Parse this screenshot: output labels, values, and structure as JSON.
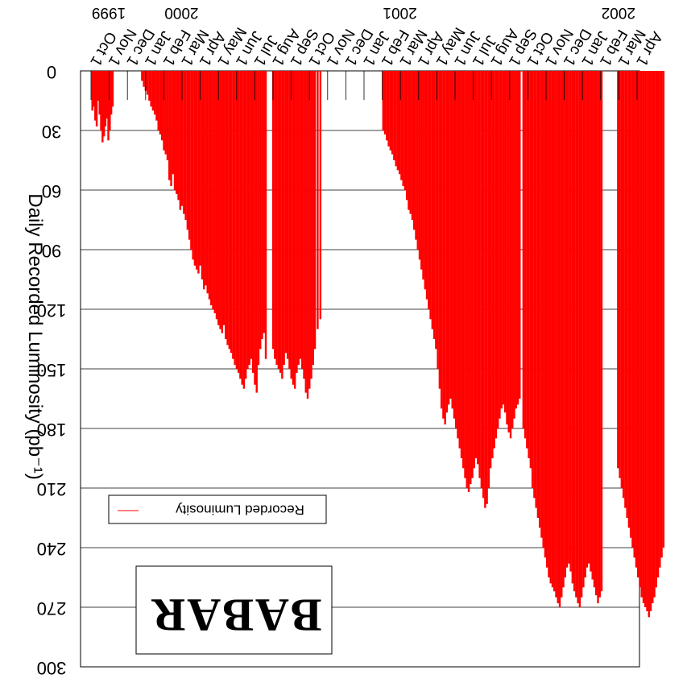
{
  "chart_data": {
    "type": "bar",
    "title": "",
    "xlabel": "",
    "ylabel": "Daily Recorded Luminosity (pb⁻¹)",
    "ylim": [
      0,
      300
    ],
    "yticks": [
      "0",
      "30",
      "60",
      "90",
      "120",
      "150",
      "180",
      "210",
      "240",
      "270",
      "300"
    ],
    "grid": true,
    "orientation": "upside-down",
    "legend": {
      "position": "lower-left",
      "entries": [
        "Recorded Luminosity"
      ]
    },
    "logo": "BABAR",
    "year_labels": [
      {
        "label": "1999",
        "month_index": 0
      },
      {
        "label": "2000",
        "month_index": 4
      },
      {
        "label": "2001",
        "month_index": 16
      },
      {
        "label": "2002",
        "month_index": 28
      }
    ],
    "months": [
      "Oct 1",
      "Nov 1",
      "Dec 1",
      "Jan 1",
      "Feb 1",
      "Mar 1",
      "Apr 1",
      "May 1",
      "Jun 1",
      "Jul 1",
      "Aug 1",
      "Sep 1",
      "Oct 1",
      "Nov 1",
      "Dec 1",
      "Jan 1",
      "Feb 1",
      "Mar 1",
      "Apr 1",
      "May 1",
      "Jun 1",
      "Jul 1",
      "Aug 1",
      "Sep 1",
      "Oct 1",
      "Nov 1",
      "Dec 1",
      "Jan 1",
      "Feb 1",
      "Mar 1",
      "Apr 1"
    ],
    "series": [
      {
        "name": "Recorded Luminosity",
        "color": "#ff0000",
        "x_unit": "month since Oct 1 1999",
        "x": [
          0.02,
          0.1,
          0.18,
          0.26,
          0.34,
          0.42,
          0.5,
          0.58,
          0.66,
          0.74,
          0.82,
          0.9,
          0.98,
          1.06,
          1.14,
          2.75,
          2.85,
          2.95,
          3.05,
          3.15,
          3.25,
          3.35,
          3.45,
          3.55,
          3.65,
          3.75,
          3.85,
          3.95,
          4.05,
          4.15,
          4.25,
          4.35,
          4.45,
          4.55,
          4.65,
          4.75,
          4.85,
          4.95,
          5.05,
          5.15,
          5.25,
          5.35,
          5.45,
          5.55,
          5.65,
          5.75,
          5.85,
          5.95,
          6.05,
          6.15,
          6.25,
          6.35,
          6.45,
          6.55,
          6.65,
          6.75,
          6.85,
          6.95,
          7.05,
          7.15,
          7.25,
          7.35,
          7.45,
          7.55,
          7.65,
          7.75,
          7.85,
          7.95,
          8.05,
          8.15,
          8.25,
          8.35,
          8.45,
          8.55,
          8.65,
          8.75,
          8.85,
          8.95,
          9.05,
          9.15,
          9.25,
          9.35,
          9.45,
          9.55,
          9.95,
          10.05,
          10.15,
          10.25,
          10.35,
          10.45,
          10.55,
          10.65,
          10.75,
          10.85,
          10.95,
          11.05,
          11.15,
          11.25,
          11.35,
          11.45,
          11.55,
          11.65,
          11.75,
          11.85,
          11.95,
          12.05,
          12.15,
          12.25,
          12.4,
          12.55,
          16.0,
          16.1,
          16.2,
          16.3,
          16.4,
          16.5,
          16.6,
          16.7,
          16.8,
          16.9,
          17.0,
          17.1,
          17.2,
          17.3,
          17.4,
          17.5,
          17.6,
          17.7,
          17.8,
          17.9,
          18.0,
          18.1,
          18.2,
          18.3,
          18.4,
          18.5,
          18.6,
          18.7,
          18.8,
          18.9,
          19.0,
          19.1,
          19.2,
          19.3,
          19.4,
          19.5,
          19.6,
          19.7,
          19.8,
          19.9,
          20.0,
          20.1,
          20.2,
          20.3,
          20.4,
          20.5,
          20.6,
          20.7,
          20.8,
          20.9,
          21.0,
          21.1,
          21.2,
          21.3,
          21.4,
          21.5,
          21.6,
          21.7,
          21.8,
          21.9,
          22.0,
          22.1,
          22.2,
          22.3,
          22.4,
          22.5,
          22.6,
          22.7,
          22.8,
          22.9,
          23.0,
          23.1,
          23.2,
          23.3,
          23.4,
          23.5,
          23.7,
          23.8,
          23.9,
          24.0,
          24.1,
          24.2,
          24.3,
          24.4,
          24.5,
          24.6,
          24.7,
          24.8,
          24.9,
          25.0,
          25.1,
          25.2,
          25.3,
          25.4,
          25.5,
          25.6,
          25.7,
          25.8,
          25.9,
          26.0,
          26.1,
          26.2,
          26.3,
          26.4,
          26.5,
          26.6,
          26.7,
          26.8,
          26.9,
          27.0,
          27.1,
          27.2,
          27.3,
          27.4,
          27.5,
          27.6,
          27.7,
          27.8,
          27.9,
          28.0,
          28.9,
          29.0,
          29.1,
          29.2,
          29.3,
          29.4,
          29.5,
          29.6,
          29.7,
          29.8,
          29.9,
          30.0,
          30.1,
          30.2,
          30.3,
          30.4,
          30.5,
          30.6,
          30.7,
          30.8,
          30.9,
          31.0,
          31.1,
          31.2,
          31.3,
          31.4
        ],
        "values": [
          20,
          18,
          25,
          28,
          15,
          22,
          30,
          36,
          33,
          28,
          24,
          35,
          30,
          22,
          18,
          5,
          8,
          10,
          12,
          15,
          18,
          20,
          22,
          25,
          30,
          32,
          35,
          40,
          42,
          45,
          55,
          58,
          52,
          60,
          62,
          65,
          70,
          68,
          72,
          75,
          80,
          85,
          90,
          95,
          98,
          100,
          102,
          98,
          105,
          110,
          108,
          112,
          115,
          118,
          120,
          122,
          125,
          128,
          130,
          132,
          128,
          135,
          138,
          140,
          142,
          145,
          148,
          150,
          152,
          155,
          158,
          160,
          155,
          150,
          148,
          145,
          152,
          158,
          162,
          148,
          140,
          135,
          132,
          145,
          140,
          145,
          148,
          150,
          152,
          155,
          148,
          142,
          145,
          150,
          155,
          158,
          160,
          152,
          148,
          145,
          150,
          155,
          162,
          165,
          160,
          155,
          148,
          140,
          130,
          125,
          30,
          32,
          35,
          38,
          40,
          42,
          45,
          48,
          50,
          52,
          55,
          58,
          60,
          65,
          70,
          72,
          75,
          80,
          85,
          90,
          95,
          100,
          105,
          110,
          115,
          120,
          125,
          130,
          135,
          140,
          150,
          160,
          170,
          175,
          178,
          172,
          168,
          165,
          170,
          175,
          180,
          185,
          190,
          195,
          200,
          205,
          210,
          212,
          208,
          205,
          200,
          195,
          198,
          205,
          210,
          215,
          220,
          218,
          210,
          200,
          195,
          190,
          185,
          180,
          175,
          170,
          168,
          172,
          178,
          182,
          185,
          180,
          175,
          170,
          168,
          165,
          180,
          185,
          190,
          195,
          200,
          210,
          215,
          220,
          225,
          230,
          235,
          240,
          245,
          250,
          255,
          258,
          260,
          262,
          265,
          268,
          270,
          265,
          260,
          255,
          250,
          248,
          252,
          258,
          262,
          265,
          268,
          270,
          265,
          260,
          255,
          250,
          248,
          252,
          256,
          260,
          264,
          268,
          265,
          262,
          200,
          205,
          210,
          215,
          220,
          225,
          230,
          235,
          240,
          245,
          250,
          255,
          260,
          265,
          268,
          270,
          272,
          275,
          272,
          268,
          265,
          260,
          255,
          250,
          245,
          240
        ]
      }
    ]
  }
}
